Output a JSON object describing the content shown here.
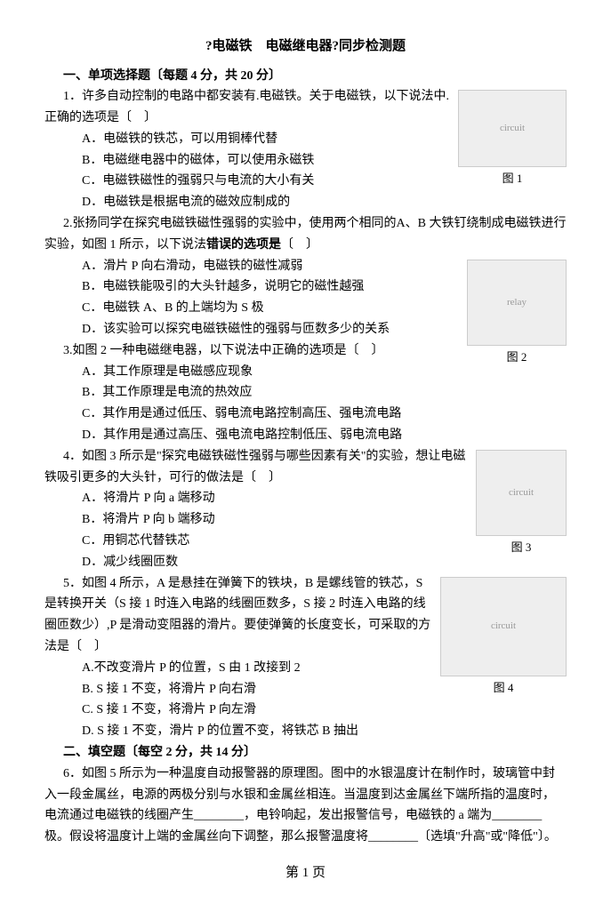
{
  "title": "?电磁铁　电磁继电器?同步检测题",
  "section1": {
    "header": "一、单项选择题〔每题 4 分，共 20 分〕",
    "q1": {
      "text": "1．许多自动控制的电路中都安装有.电磁铁。关于电磁铁，以下说法中.正确的选项是〔　〕",
      "a": "A．电磁铁的铁芯，可以用铜棒代替",
      "b": "B．电磁继电器中的磁体，可以使用永磁铁",
      "c": "C．电磁铁磁性的强弱只与电流的大小有关",
      "d": "D．电磁铁是根据电流的磁效应制成的"
    },
    "q2": {
      "text_pre": "2.张扬同学在探究电磁铁磁性强弱的实验中，使用两个相同的A、B 大铁钉绕制成电磁铁进行实验，如图 1 所示，以下说法",
      "text_bold": "错误的选项是",
      "text_post": "〔　〕",
      "a": "A．滑片 P 向右滑动，电磁铁的磁性减弱",
      "b": "B．电磁铁能吸引的大头针越多，说明它的磁性越强",
      "c": "C．电磁铁 A、B 的上端均为 S 极",
      "d": "D．该实验可以探究电磁铁磁性的强弱与匝数多少的关系"
    },
    "q3": {
      "text": "3.如图 2 一种电磁继电器，以下说法中正确的选项是〔　〕",
      "a": "A．其工作原理是电磁感应现象",
      "b": "B．其工作原理是电流的热效应",
      "c": "C．其作用是通过低压、弱电流电路控制高压、强电流电路",
      "d": "D．其作用是通过高压、强电流电路控制低压、弱电流电路"
    },
    "q4": {
      "text": "4．如图 3 所示是\"探究电磁铁磁性强弱与哪些因素有关\"的实验，想让电磁铁吸引更多的大头针，可行的做法是〔　〕",
      "a": "A．将滑片 P 向 a 端移动",
      "b": "B．将滑片 P 向 b 端移动",
      "c": "C．用铜芯代替铁芯",
      "d": "D．减少线圈匝数"
    },
    "q5": {
      "text": "5．如图 4 所示，A 是悬挂在弹簧下的铁块，B 是螺线管的铁芯，S 是转换开关（S 接 1 时连入电路的线圈匝数多，S 接 2 时连入电路的线圈匝数少）,P 是滑动变阻器的滑片。要使弹簧的长度变长，可采取的方法是〔　〕",
      "a": "A.不改变滑片 P 的位置，S 由 1 改接到 2",
      "b": "B. S 接 1 不变，将滑片 P 向右滑",
      "c": "C. S 接 1 不变，将滑片 P 向左滑",
      "d": "D. S 接 1 不变，滑片 P 的位置不变，将铁芯 B 抽出"
    }
  },
  "section2": {
    "header": "二、填空题〔每空 2 分，共 14 分〕",
    "q6": "6．如图 5 所示为一种温度自动报警器的原理图。图中的水银温度计在制作时，玻璃管中封入一段金属丝，电源的两极分别与水银和金属丝相连。当温度到达金属丝下端所指的温度时，电流通过电磁铁的线圈产生________，电铃响起，发出报警信号，电磁铁的 a 端为________极。假设将温度计上端的金属丝向下调整，那么报警温度将________〔选填\"升高\"或\"降低\"〕。"
  },
  "figures": {
    "f1": "图 1",
    "f2": "图 2",
    "f3": "图 3",
    "f4": "图 4"
  },
  "page": "第 1 页"
}
